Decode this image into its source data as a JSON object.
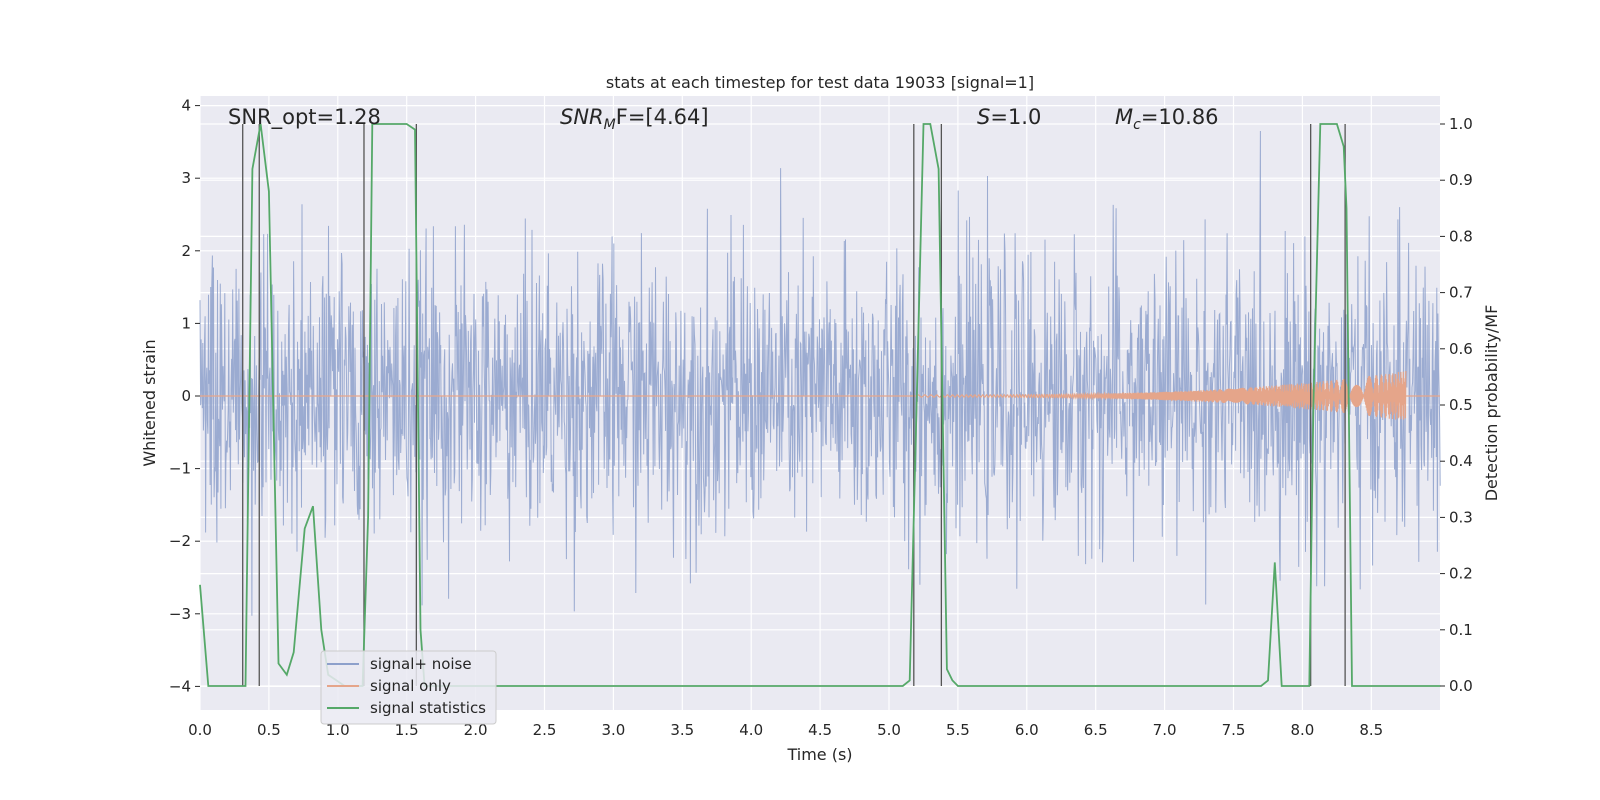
{
  "chart_data": {
    "type": "line",
    "title": "stats at each timestep for test data 19033 [signal=1]",
    "xlabel": "Time (s)",
    "ylabel_left": "Whitened strain",
    "ylabel_right": "Detection probability/MF",
    "xlim": [
      0,
      9.0
    ],
    "ylim_left": [
      -4.4,
      4.1
    ],
    "ylim_right": [
      -0.045,
      1.035
    ],
    "x_ticks": [
      "0.0",
      "0.5",
      "1.0",
      "1.5",
      "2.0",
      "2.5",
      "3.0",
      "3.5",
      "4.0",
      "4.5",
      "5.0",
      "5.5",
      "6.0",
      "6.5",
      "7.0",
      "7.5",
      "8.0",
      "8.5"
    ],
    "x_tick_values": [
      0,
      0.5,
      1,
      1.5,
      2,
      2.5,
      3,
      3.5,
      4,
      4.5,
      5,
      5.5,
      6,
      6.5,
      7,
      7.5,
      8,
      8.5
    ],
    "y_ticks_left": [
      "−4",
      "−3",
      "−2",
      "−1",
      "0",
      "1",
      "2",
      "3",
      "4"
    ],
    "y_tick_values_left": [
      -4,
      -3,
      -2,
      -1,
      0,
      1,
      2,
      3,
      4
    ],
    "y_ticks_right": [
      "0.0",
      "0.1",
      "0.2",
      "0.3",
      "0.4",
      "0.5",
      "0.6",
      "0.7",
      "0.8",
      "0.9",
      "1.0"
    ],
    "y_tick_values_right": [
      0,
      0.1,
      0.2,
      0.3,
      0.4,
      0.5,
      0.6,
      0.7,
      0.8,
      0.9,
      1.0
    ],
    "grid": true,
    "legend_position": "bottom-left",
    "annotations": {
      "snr_opt": "SNR_opt=1.28",
      "snr_mf_main": "SNR",
      "snr_mf_sub": "M",
      "snr_mf_tail": "F=[4.64]",
      "s_main": "S",
      "s_tail": "=1.0",
      "mc_main": "M",
      "mc_sub": "c",
      "mc_tail": "=10.86"
    },
    "series": [
      {
        "name": "signal+ noise",
        "color": "#8da0cb",
        "description": "whitened strain noise, roughly gaussian between -2.7 and +3.7"
      },
      {
        "name": "signal only",
        "color": "#e5a58a",
        "description": "chirp signal near zero, growing amplitude towards 8.75 s (peak about ±0.35)"
      },
      {
        "name": "signal statistics",
        "color": "#55a868",
        "x": [
          0,
          0.06,
          0.15,
          0.3,
          0.33,
          0.38,
          0.44,
          0.5,
          0.57,
          0.63,
          0.68,
          0.76,
          0.82,
          0.88,
          0.93,
          1.05,
          1.18,
          1.22,
          1.25,
          1.3,
          1.5,
          1.56,
          1.6,
          1.63,
          1.7,
          5.1,
          5.15,
          5.2,
          5.25,
          5.3,
          5.36,
          5.42,
          5.46,
          5.5,
          7.7,
          7.75,
          7.8,
          7.85,
          7.95,
          8.05,
          8.08,
          8.13,
          8.25,
          8.3,
          8.32,
          8.36,
          8.42,
          9.0
        ],
        "y": [
          0.18,
          0.0,
          0.0,
          0.0,
          0.0,
          0.92,
          1.0,
          0.88,
          0.04,
          0.02,
          0.06,
          0.28,
          0.32,
          0.1,
          0.02,
          0.0,
          0.0,
          0.3,
          1.0,
          1.0,
          1.0,
          0.99,
          0.1,
          0.0,
          0.0,
          0.0,
          0.01,
          0.5,
          1.0,
          1.0,
          0.92,
          0.03,
          0.01,
          0.0,
          0.0,
          0.01,
          0.22,
          0.0,
          0.0,
          0.0,
          0.5,
          1.0,
          1.0,
          0.96,
          0.85,
          0.0,
          0.0,
          0.0
        ]
      }
    ],
    "vertical_markers": [
      0.31,
      0.43,
      1.19,
      1.57,
      5.18,
      5.38,
      8.06,
      8.31
    ]
  }
}
